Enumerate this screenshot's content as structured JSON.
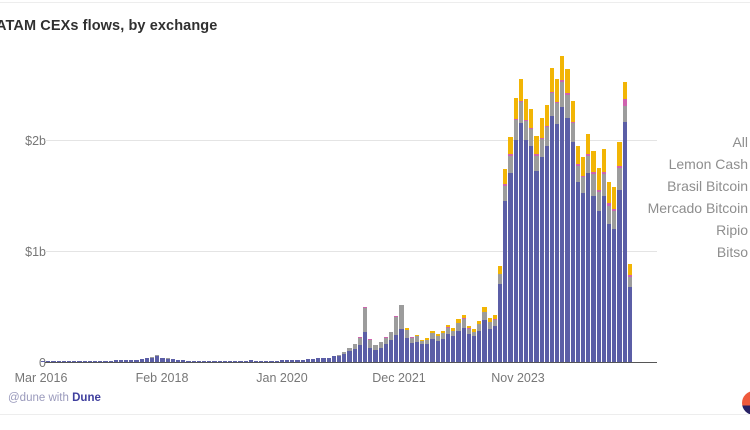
{
  "title": "ATAM CEXs flows, by exchange",
  "attribution": {
    "prefix": "@dune with ",
    "brand": "Dune"
  },
  "y_axis": {
    "ticks": {
      "t2": "$2b",
      "t1": "$1b",
      "t0": "0"
    }
  },
  "x_axis": {
    "ticks": [
      "Mar 2016",
      "Feb 2018",
      "Jan 2020",
      "Dec 2021",
      "Nov 2023"
    ]
  },
  "legend": {
    "items": [
      {
        "label": "All"
      },
      {
        "label": "Lemon Cash"
      },
      {
        "label": "Brasil Bitcoin"
      },
      {
        "label": "Mercado Bitcoin"
      },
      {
        "label": "Ripio"
      },
      {
        "label": "Bitso"
      }
    ]
  },
  "colors": {
    "bar_purple": "#5b5ea6",
    "bar_gray": "#9c9c9c",
    "bar_pink": "#cf62ae",
    "bar_yellow": "#f2b505",
    "axis_line": "#565656",
    "gridline": "#e4e4e4",
    "tick_text": "#777777",
    "legend_text": "#8e8e8e",
    "logo_orange": "#ef5a3c",
    "logo_navy": "#272165"
  },
  "chart_data": {
    "type": "bar",
    "stacked": true,
    "stack_order": "bottom_to_top",
    "title": "ATAM CEXs flows, by exchange",
    "xlabel": "",
    "ylabel": "",
    "unit": "USD billions",
    "ylim": [
      0,
      2.9
    ],
    "y_ticks": [
      0,
      1,
      2
    ],
    "y_tick_labels": [
      "0",
      "$1b",
      "$2b"
    ],
    "x_tick_labels": [
      "Mar 2016",
      "Feb 2018",
      "Jan 2020",
      "Dec 2021",
      "Nov 2023"
    ],
    "grid": "horizontal",
    "legend_position": "right",
    "legend_entries": [
      "All",
      "Lemon Cash",
      "Brasil Bitcoin",
      "Mercado Bitcoin",
      "Ripio",
      "Bitso"
    ],
    "x": [
      "2016-03",
      "2016-04",
      "2016-05",
      "2016-06",
      "2016-07",
      "2016-08",
      "2016-09",
      "2016-10",
      "2016-11",
      "2016-12",
      "2017-01",
      "2017-02",
      "2017-03",
      "2017-04",
      "2017-05",
      "2017-06",
      "2017-07",
      "2017-08",
      "2017-09",
      "2017-10",
      "2017-11",
      "2017-12",
      "2018-01",
      "2018-02",
      "2018-03",
      "2018-04",
      "2018-05",
      "2018-06",
      "2018-07",
      "2018-08",
      "2018-09",
      "2018-10",
      "2018-11",
      "2018-12",
      "2019-01",
      "2019-02",
      "2019-03",
      "2019-04",
      "2019-05",
      "2019-06",
      "2019-07",
      "2019-08",
      "2019-09",
      "2019-10",
      "2019-11",
      "2019-12",
      "2020-01",
      "2020-02",
      "2020-03",
      "2020-04",
      "2020-05",
      "2020-06",
      "2020-07",
      "2020-08",
      "2020-09",
      "2020-10",
      "2020-11",
      "2020-12",
      "2021-01",
      "2021-02",
      "2021-03",
      "2021-04",
      "2021-05",
      "2021-06",
      "2021-07",
      "2021-08",
      "2021-09",
      "2021-10",
      "2021-11",
      "2021-12",
      "2022-01",
      "2022-02",
      "2022-03",
      "2022-04",
      "2022-05",
      "2022-06",
      "2022-07",
      "2022-08",
      "2022-09",
      "2022-10",
      "2022-11",
      "2022-12",
      "2023-01",
      "2023-02",
      "2023-03",
      "2023-04",
      "2023-05",
      "2023-06",
      "2023-07",
      "2023-08",
      "2023-09",
      "2023-10",
      "2023-11",
      "2023-12",
      "2024-01",
      "2024-02",
      "2024-03",
      "2024-04",
      "2024-05",
      "2024-06",
      "2024-07",
      "2024-08",
      "2024-09",
      "2024-10",
      "2024-11",
      "2024-12",
      "2025-01",
      "2025-02",
      "2025-03",
      "2025-04",
      "2025-05",
      "2025-06",
      "2025-07",
      "2025-08"
    ],
    "series": [
      {
        "name": "Bitso",
        "color": "#5b5ea6",
        "values": [
          0.005,
          0.006,
          0.006,
          0.007,
          0.007,
          0.008,
          0.008,
          0.009,
          0.01,
          0.012,
          0.01,
          0.01,
          0.012,
          0.012,
          0.014,
          0.015,
          0.015,
          0.018,
          0.02,
          0.025,
          0.032,
          0.04,
          0.055,
          0.035,
          0.028,
          0.025,
          0.02,
          0.015,
          0.012,
          0.01,
          0.01,
          0.01,
          0.012,
          0.01,
          0.008,
          0.008,
          0.01,
          0.012,
          0.012,
          0.012,
          0.014,
          0.012,
          0.01,
          0.01,
          0.01,
          0.012,
          0.015,
          0.016,
          0.02,
          0.018,
          0.022,
          0.024,
          0.028,
          0.035,
          0.032,
          0.04,
          0.05,
          0.057,
          0.07,
          0.1,
          0.12,
          0.15,
          0.27,
          0.13,
          0.11,
          0.13,
          0.16,
          0.2,
          0.24,
          0.3,
          0.22,
          0.17,
          0.18,
          0.16,
          0.16,
          0.21,
          0.19,
          0.21,
          0.25,
          0.23,
          0.28,
          0.31,
          0.25,
          0.23,
          0.28,
          0.38,
          0.3,
          0.32,
          0.7,
          1.45,
          1.7,
          2.0,
          2.15,
          2.0,
          1.95,
          1.72,
          1.85,
          1.95,
          2.22,
          2.14,
          2.3,
          2.2,
          1.98,
          1.62,
          1.52,
          1.7,
          1.5,
          1.36,
          1.5,
          1.24,
          1.2,
          1.55,
          2.16,
          0.68
        ]
      },
      {
        "name": "Mercado Bitcoin",
        "color": "#9c9c9c",
        "values": [
          0,
          0,
          0,
          0,
          0,
          0,
          0,
          0,
          0,
          0,
          0,
          0,
          0,
          0,
          0,
          0,
          0,
          0,
          0,
          0,
          0.003,
          0.005,
          0.01,
          0.005,
          0.004,
          0,
          0,
          0,
          0,
          0,
          0,
          0,
          0,
          0,
          0,
          0,
          0,
          0,
          0,
          0,
          0,
          0,
          0,
          0,
          0,
          0,
          0,
          0,
          0,
          0,
          0,
          0,
          0,
          0,
          0,
          0,
          0.005,
          0.008,
          0.02,
          0.03,
          0.04,
          0.07,
          0.22,
          0.07,
          0.04,
          0.05,
          0.06,
          0.07,
          0.17,
          0.21,
          0.07,
          0.05,
          0.05,
          0.03,
          0.04,
          0.05,
          0.04,
          0.05,
          0.06,
          0.05,
          0.07,
          0.08,
          0.05,
          0.04,
          0.06,
          0.07,
          0.06,
          0.06,
          0.09,
          0.14,
          0.16,
          0.18,
          0.19,
          0.17,
          0.15,
          0.14,
          0.16,
          0.17,
          0.2,
          0.19,
          0.22,
          0.21,
          0.17,
          0.15,
          0.15,
          0.16,
          0.19,
          0.17,
          0.19,
          0.17,
          0.16,
          0.2,
          0.15,
          0.09
        ]
      },
      {
        "name": "Ripio",
        "color": "#cf62ae",
        "values": [
          0,
          0,
          0,
          0,
          0,
          0,
          0,
          0,
          0,
          0,
          0,
          0,
          0,
          0,
          0,
          0,
          0,
          0,
          0,
          0,
          0,
          0,
          0,
          0,
          0,
          0,
          0,
          0,
          0,
          0,
          0,
          0,
          0,
          0,
          0,
          0,
          0,
          0,
          0,
          0,
          0,
          0,
          0,
          0,
          0,
          0,
          0,
          0,
          0,
          0,
          0,
          0,
          0,
          0,
          0,
          0,
          0,
          0,
          0,
          0,
          0.003,
          0.003,
          0.01,
          0.005,
          0.003,
          0.003,
          0.005,
          0.005,
          0.005,
          0.005,
          0.003,
          0.003,
          0.003,
          0.002,
          0.002,
          0.003,
          0.003,
          0.003,
          0.004,
          0.004,
          0.004,
          0.005,
          0.004,
          0.004,
          0.004,
          0.005,
          0.004,
          0.005,
          0.005,
          0.01,
          0.01,
          0.01,
          0.01,
          0.01,
          0.01,
          0.01,
          0.01,
          0.01,
          0.01,
          0.01,
          0.02,
          0.01,
          0.01,
          0.01,
          0.01,
          0.01,
          0.02,
          0.02,
          0.02,
          0.02,
          0.02,
          0.02,
          0.06,
          0.01
        ]
      },
      {
        "name": "Lemon Cash",
        "color": "#f2b505",
        "values": [
          0,
          0,
          0,
          0,
          0,
          0,
          0,
          0,
          0,
          0,
          0,
          0,
          0,
          0,
          0,
          0,
          0,
          0,
          0,
          0,
          0,
          0,
          0,
          0,
          0,
          0,
          0,
          0,
          0,
          0,
          0,
          0,
          0,
          0,
          0,
          0,
          0,
          0,
          0,
          0,
          0,
          0,
          0,
          0,
          0,
          0,
          0,
          0,
          0,
          0,
          0,
          0,
          0,
          0,
          0,
          0,
          0,
          0,
          0,
          0,
          0,
          0,
          0,
          0,
          0,
          0,
          0,
          0,
          0,
          0,
          0.01,
          0.005,
          0.01,
          0.01,
          0.012,
          0.02,
          0.02,
          0.02,
          0.022,
          0.022,
          0.03,
          0.03,
          0.025,
          0.025,
          0.03,
          0.04,
          0.03,
          0.035,
          0.07,
          0.14,
          0.16,
          0.19,
          0.2,
          0.19,
          0.17,
          0.17,
          0.18,
          0.19,
          0.22,
          0.21,
          0.22,
          0.22,
          0.19,
          0.17,
          0.17,
          0.18,
          0.19,
          0.2,
          0.21,
          0.19,
          0.2,
          0.21,
          0.15,
          0.1
        ]
      }
    ]
  }
}
